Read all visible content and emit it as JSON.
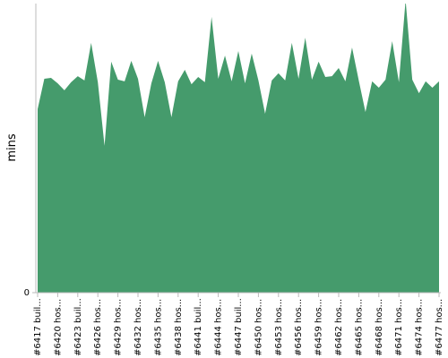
{
  "chart_data": {
    "type": "area",
    "y_label": "mins",
    "color": "#459b6c",
    "categories": [
      "#6417 buil...",
      null,
      null,
      "#6420 hos...",
      null,
      null,
      "#6423 buil...",
      null,
      null,
      "#6426 hos...",
      null,
      null,
      "#6429 hos...",
      null,
      null,
      "#6432 hos...",
      null,
      null,
      "#6435 hos...",
      null,
      null,
      "#6438 hos...",
      null,
      null,
      "#6441 buil...",
      null,
      null,
      "#6444 hos...",
      null,
      null,
      "#6447 buil...",
      null,
      null,
      "#6450 hos...",
      null,
      null,
      "#6453 hos...",
      null,
      null,
      "#6456 hos...",
      null,
      null,
      "#6459 hos...",
      null,
      null,
      "#6462 hos...",
      null,
      null,
      "#6465 hos...",
      null,
      null,
      "#6468 hos...",
      null,
      null,
      "#6471 hos...",
      null,
      null,
      "#6474 hos...",
      null,
      null,
      "#6477 hos..."
    ],
    "values": [
      63.5,
      74.0,
      74.3,
      72.4,
      70.0,
      72.8,
      74.9,
      73.4,
      86.4,
      72.8,
      50.8,
      79.9,
      73.7,
      73.1,
      80.2,
      74.0,
      60.7,
      72.4,
      80.2,
      72.8,
      60.7,
      73.1,
      77.1,
      72.1,
      74.6,
      72.8,
      95.4,
      74.0,
      82.0,
      73.1,
      83.6,
      72.4,
      82.7,
      73.4,
      61.9,
      73.4,
      75.9,
      73.4,
      86.4,
      74.0,
      88.2,
      73.7,
      79.9,
      74.6,
      74.9,
      77.7,
      73.1,
      84.8,
      73.4,
      62.5,
      73.1,
      70.9,
      73.7,
      87.0,
      72.8,
      101.2,
      73.7,
      69.0,
      73.1,
      70.9,
      73.1
    ],
    "ylim": [
      0,
      100
    ],
    "yticks": [
      0
    ]
  }
}
